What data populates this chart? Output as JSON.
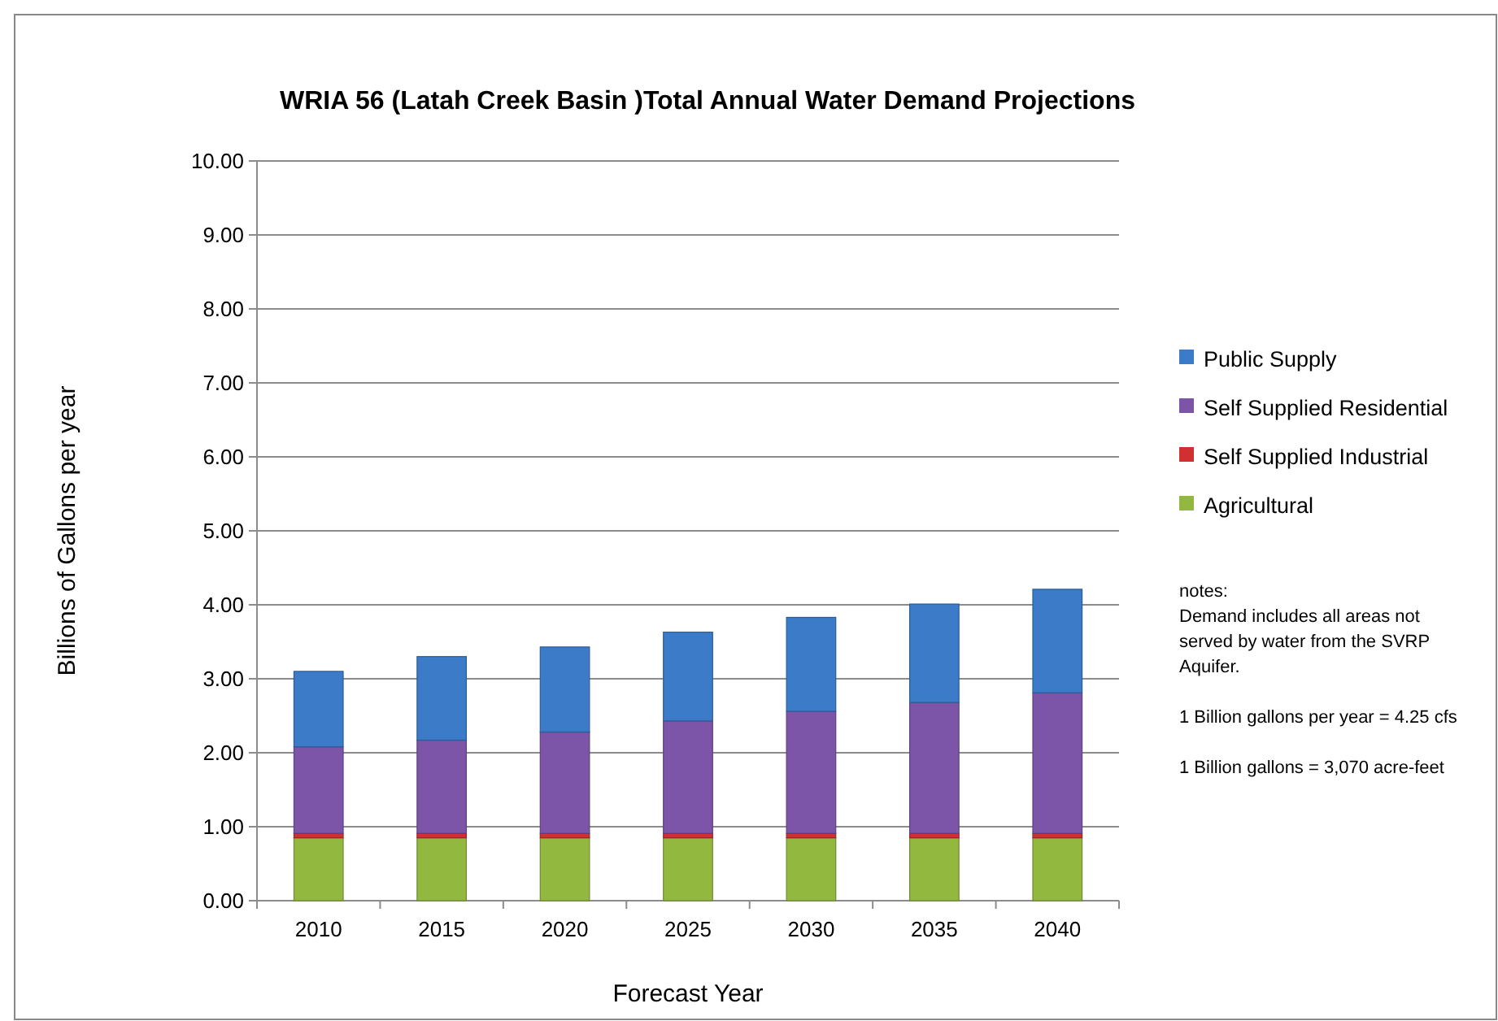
{
  "chart_data": {
    "type": "bar",
    "title": "WRIA 56 (Latah Creek Basin )Total Annual Water Demand Projections",
    "xlabel": "Forecast Year",
    "ylabel": "Billions of Gallons per year",
    "categories": [
      "2010",
      "2015",
      "2020",
      "2025",
      "2030",
      "2035",
      "2040"
    ],
    "stacked": true,
    "series": [
      {
        "name": "Agricultural",
        "color": "#92b840",
        "values": [
          0.85,
          0.85,
          0.85,
          0.85,
          0.85,
          0.85,
          0.85
        ]
      },
      {
        "name": "Self Supplied Industrial",
        "color": "#d03030",
        "values": [
          0.06,
          0.06,
          0.06,
          0.06,
          0.06,
          0.06,
          0.06
        ]
      },
      {
        "name": "Self Supplied Residential",
        "color": "#7c55a8",
        "values": [
          1.17,
          1.26,
          1.37,
          1.52,
          1.65,
          1.77,
          1.9
        ]
      },
      {
        "name": "Public Supply",
        "color": "#3b7bc8",
        "values": [
          1.02,
          1.13,
          1.15,
          1.2,
          1.27,
          1.33,
          1.4
        ]
      }
    ],
    "ylim": [
      0,
      10
    ],
    "yticks": [
      {
        "value": 0,
        "label": "0.00"
      },
      {
        "value": 1,
        "label": "1.00"
      },
      {
        "value": 2,
        "label": "2.00"
      },
      {
        "value": 3,
        "label": "3.00"
      },
      {
        "value": 4,
        "label": "4.00"
      },
      {
        "value": 5,
        "label": "5.00"
      },
      {
        "value": 6,
        "label": "6.00"
      },
      {
        "value": 7,
        "label": "7.00"
      },
      {
        "value": 8,
        "label": "8.00"
      },
      {
        "value": 9,
        "label": "9.00"
      },
      {
        "value": 10,
        "label": "10.00"
      }
    ],
    "grid": "y",
    "legend": "right",
    "annotations": [
      "notes:\nDemand includes all areas not\nserved by water from the SVRP\nAquifer.",
      "1 Billion gallons per year =  4.25 cfs",
      "1 Billion gallons = 3,070 acre-feet"
    ]
  }
}
